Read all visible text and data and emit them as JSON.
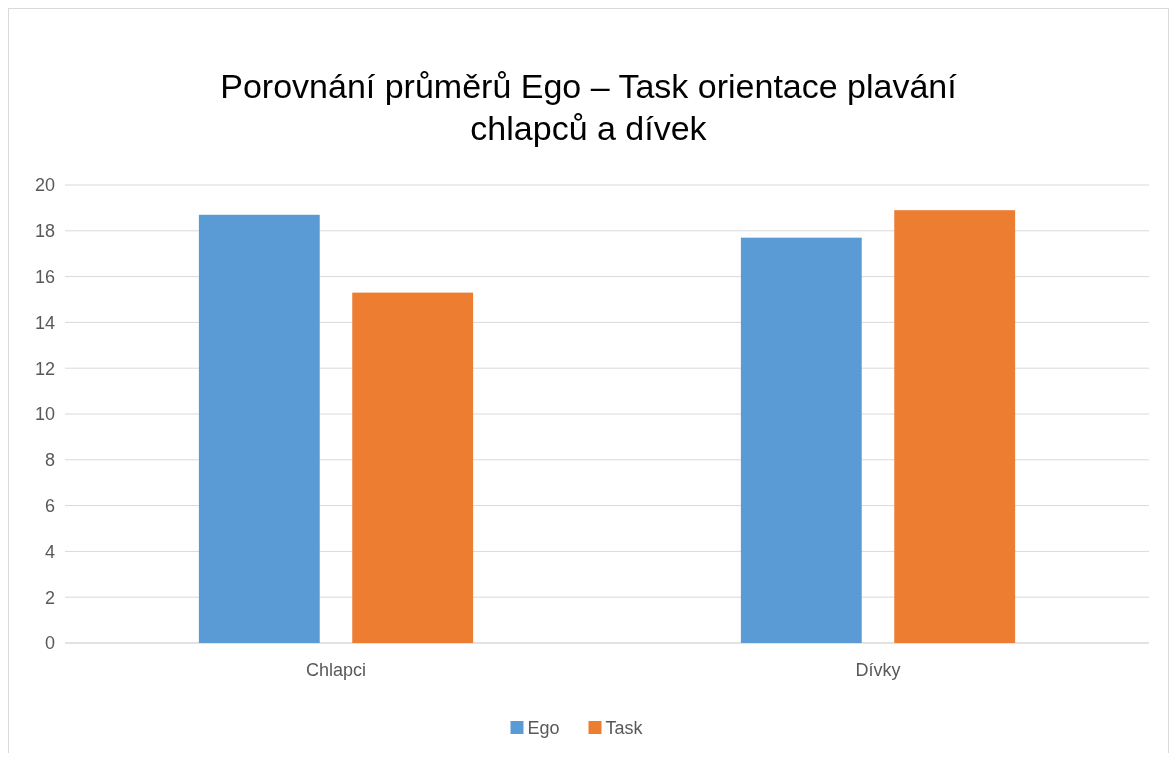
{
  "chart_data": {
    "type": "bar",
    "title": "Porovnání průměrů Ego – Task orientace plavání chlapců a dívek",
    "categories": [
      "Chlapci",
      "Dívky"
    ],
    "series": [
      {
        "name": "Ego",
        "color": "#5b9bd5",
        "values": [
          18.7,
          17.7
        ]
      },
      {
        "name": "Task",
        "color": "#ed7d31",
        "values": [
          15.3,
          18.9
        ]
      }
    ],
    "ylim": [
      0,
      20
    ],
    "yticks": [
      0,
      2,
      4,
      6,
      8,
      10,
      12,
      14,
      16,
      18,
      20
    ],
    "grid": "y",
    "legend": "bottom"
  }
}
